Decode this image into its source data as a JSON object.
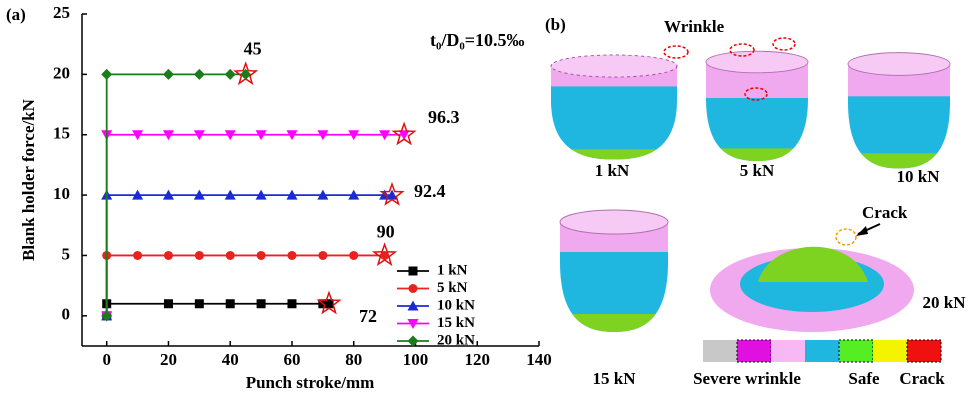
{
  "chart_data": {
    "type": "line",
    "panel_label": "(a)",
    "xlabel": "Punch stroke/mm",
    "ylabel": "Blank holder force/kN",
    "annotation": "t₀/D₀=10.5‰",
    "xlim": [
      -8,
      140
    ],
    "ylim": [
      -2.5,
      25
    ],
    "xticks": [
      0,
      20,
      40,
      60,
      80,
      100,
      120,
      140
    ],
    "yticks": [
      0,
      5,
      10,
      15,
      20,
      25
    ],
    "legend": "right",
    "series": [
      {
        "name": "1 kN",
        "color": "#000000",
        "marker": "square",
        "end_label": "72",
        "x": [
          0,
          0,
          20,
          30,
          40,
          50,
          60,
          70,
          72
        ],
        "values": [
          0,
          1,
          1,
          1,
          1,
          1,
          1,
          1,
          1
        ]
      },
      {
        "name": "5 kN",
        "color": "#e8221f",
        "marker": "circle",
        "end_label": "90",
        "x": [
          0,
          0,
          10,
          20,
          30,
          40,
          50,
          60,
          70,
          80,
          90
        ],
        "values": [
          0,
          5,
          5,
          5,
          5,
          5,
          5,
          5,
          5,
          5,
          5
        ]
      },
      {
        "name": "10 kN",
        "color": "#1a2bd6",
        "marker": "triangle-up",
        "end_label": "92.4",
        "x": [
          0,
          0,
          10,
          20,
          30,
          40,
          50,
          60,
          70,
          80,
          90,
          92.4
        ],
        "values": [
          0,
          10,
          10,
          10,
          10,
          10,
          10,
          10,
          10,
          10,
          10,
          10
        ]
      },
      {
        "name": "15 kN",
        "color": "#ff00ff",
        "marker": "triangle-down",
        "end_label": "96.3",
        "x": [
          0,
          0,
          10,
          20,
          30,
          40,
          50,
          60,
          70,
          80,
          90,
          96.3
        ],
        "values": [
          0,
          15,
          15,
          15,
          15,
          15,
          15,
          15,
          15,
          15,
          15,
          15
        ]
      },
      {
        "name": "20 kN",
        "color": "#1a7d1a",
        "marker": "diamond",
        "end_label": "45",
        "x": [
          0,
          0,
          20,
          30,
          40,
          45
        ],
        "values": [
          0,
          20,
          20,
          20,
          20,
          20
        ]
      }
    ]
  },
  "panel_b": {
    "panel_label": "(b)",
    "wrinkle": "Wrinkle",
    "crack": "Crack",
    "cups": [
      "1 kN",
      "5 kN",
      "10 kN",
      "15 kN",
      "20 kN"
    ],
    "scale": [
      "Severe wrinkle",
      "Safe",
      "Crack"
    ]
  }
}
